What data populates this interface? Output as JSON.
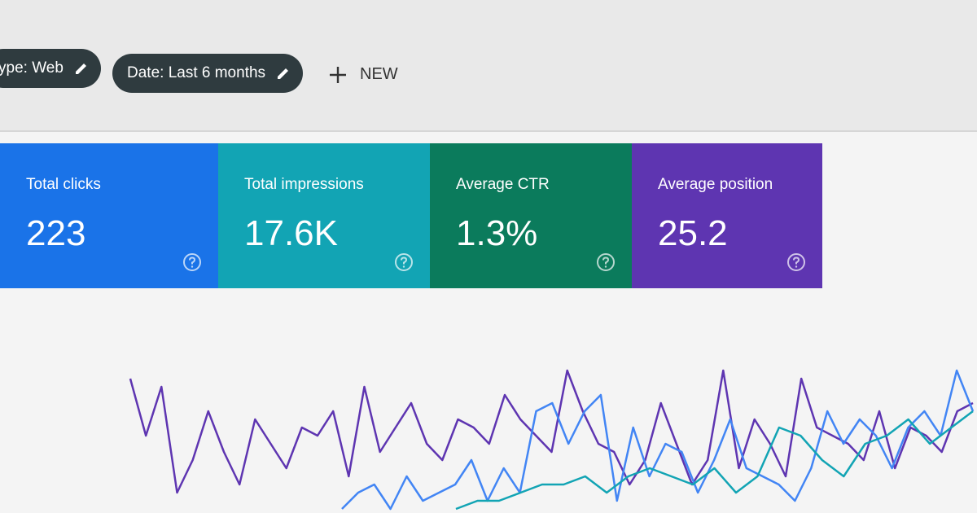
{
  "toolbar": {
    "chips": [
      "ype: Web",
      "Date: Last 6 months"
    ],
    "new_button": "NEW"
  },
  "cards": [
    {
      "label": "Total clicks",
      "value": "223",
      "color": "#1a73e8"
    },
    {
      "label": "Total impressions",
      "value": "17.6K",
      "color": "#12a4b4"
    },
    {
      "label": "Average CTR",
      "value": "1.3%",
      "color": "#0b7b5c"
    },
    {
      "label": "Average position",
      "value": "25.2",
      "color": "#5e35b1"
    }
  ],
  "chart": {
    "type": "line",
    "ylim": [
      0,
      100
    ],
    "series": [
      {
        "color": "#5e35b1",
        "values": [
          80,
          45,
          75,
          10,
          30,
          60,
          35,
          15,
          55,
          40,
          25,
          50,
          45,
          60,
          20,
          75,
          35,
          50,
          65,
          40,
          30,
          55,
          50,
          40,
          70,
          55,
          45,
          35,
          85,
          60,
          40,
          35,
          15,
          30,
          65,
          40,
          15,
          30,
          85,
          25,
          55,
          40,
          20,
          80,
          50,
          45,
          40,
          30,
          60,
          25,
          50,
          45,
          35,
          60,
          65
        ]
      },
      {
        "color": "#4285f4",
        "values": [
          0,
          10,
          15,
          0,
          20,
          5,
          10,
          15,
          30,
          5,
          25,
          10,
          60,
          65,
          40,
          60,
          70,
          5,
          50,
          20,
          40,
          35,
          10,
          30,
          55,
          25,
          20,
          15,
          5,
          25,
          60,
          40,
          55,
          45,
          25,
          50,
          60,
          45,
          85,
          60
        ]
      },
      {
        "color": "#12a4b4",
        "values": [
          0,
          5,
          5,
          10,
          15,
          15,
          20,
          10,
          20,
          25,
          20,
          15,
          25,
          10,
          20,
          50,
          45,
          30,
          20,
          40,
          45,
          55,
          40,
          50,
          60
        ]
      }
    ]
  }
}
